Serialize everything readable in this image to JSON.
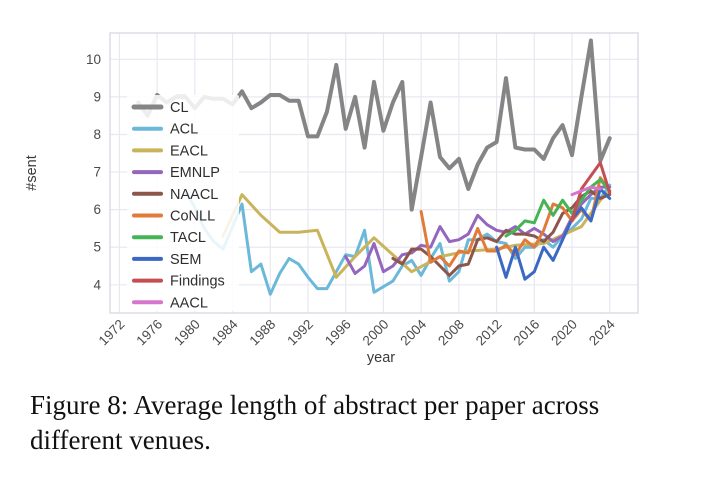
{
  "figure": {
    "caption": "Figure 8: Average length of abstract per paper across different venues."
  },
  "colors": {
    "grid": "#e8e8f0",
    "border": "#d7d7e0",
    "tick_label": "#4a4a4a",
    "axis_label": "#3a3a3a",
    "legend_text": "#2e2e2e",
    "legend_bg": "rgba(255,255,255,0.85)"
  },
  "chart_data": {
    "type": "line",
    "title": "",
    "xlabel": "year",
    "ylabel": "#sent",
    "xlim": [
      1971,
      2027
    ],
    "ylim": [
      3.25,
      10.7
    ],
    "xticks": [
      1972,
      1976,
      1980,
      1984,
      1988,
      1992,
      1996,
      2000,
      2004,
      2008,
      2012,
      2016,
      2020,
      2024
    ],
    "yticks": [
      4,
      5,
      6,
      7,
      8,
      9,
      10
    ],
    "grid": true,
    "legend_position": "upper left inside",
    "series": [
      {
        "name": "CL",
        "color": "#858585",
        "width": 4,
        "points": [
          [
            1974,
            8.85
          ],
          [
            1975,
            8.5
          ],
          [
            1976,
            9.05
          ],
          [
            1977,
            8.85
          ],
          [
            1978,
            9.0
          ],
          [
            1979,
            9.0
          ],
          [
            1980,
            8.7
          ],
          [
            1981,
            9.0
          ],
          [
            1982,
            8.95
          ],
          [
            1983,
            8.95
          ],
          [
            1984,
            8.8
          ],
          [
            1985,
            9.15
          ],
          [
            1986,
            8.7
          ],
          [
            1987,
            8.85
          ],
          [
            1988,
            9.05
          ],
          [
            1989,
            9.05
          ],
          [
            1990,
            8.9
          ],
          [
            1991,
            8.9
          ],
          [
            1992,
            7.95
          ],
          [
            1993,
            7.95
          ],
          [
            1994,
            8.6
          ],
          [
            1995,
            9.85
          ],
          [
            1996,
            8.15
          ],
          [
            1997,
            9.0
          ],
          [
            1998,
            7.65
          ],
          [
            1999,
            9.4
          ],
          [
            2000,
            8.1
          ],
          [
            2001,
            8.85
          ],
          [
            2002,
            9.4
          ],
          [
            2003,
            6.0
          ],
          [
            2004,
            7.4
          ],
          [
            2005,
            8.85
          ],
          [
            2006,
            7.4
          ],
          [
            2007,
            7.1
          ],
          [
            2008,
            7.35
          ],
          [
            2009,
            6.55
          ],
          [
            2010,
            7.2
          ],
          [
            2011,
            7.65
          ],
          [
            2012,
            7.8
          ],
          [
            2013,
            9.5
          ],
          [
            2014,
            7.65
          ],
          [
            2015,
            7.6
          ],
          [
            2016,
            7.6
          ],
          [
            2017,
            7.35
          ],
          [
            2018,
            7.9
          ],
          [
            2019,
            8.25
          ],
          [
            2020,
            7.45
          ],
          [
            2021,
            9.0
          ],
          [
            2022,
            10.5
          ],
          [
            2023,
            7.3
          ],
          [
            2024,
            7.9
          ]
        ]
      },
      {
        "name": "ACL",
        "color": "#6cb8d9",
        "width": 3,
        "points": [
          [
            1979,
            6.5
          ],
          [
            1980,
            6.05
          ],
          [
            1981,
            5.5
          ],
          [
            1982,
            5.15
          ],
          [
            1983,
            4.95
          ],
          [
            1984,
            5.55
          ],
          [
            1985,
            6.15
          ],
          [
            1986,
            4.35
          ],
          [
            1987,
            4.55
          ],
          [
            1988,
            3.75
          ],
          [
            1989,
            4.3
          ],
          [
            1990,
            4.7
          ],
          [
            1991,
            4.55
          ],
          [
            1992,
            4.2
          ],
          [
            1993,
            3.9
          ],
          [
            1994,
            3.9
          ],
          [
            1995,
            4.35
          ],
          [
            1996,
            4.8
          ],
          [
            1997,
            4.75
          ],
          [
            1998,
            5.45
          ],
          [
            1999,
            3.8
          ],
          [
            2000,
            3.95
          ],
          [
            2001,
            4.1
          ],
          [
            2002,
            4.5
          ],
          [
            2003,
            4.65
          ],
          [
            2004,
            4.25
          ],
          [
            2005,
            4.7
          ],
          [
            2006,
            5.1
          ],
          [
            2007,
            4.1
          ],
          [
            2008,
            4.35
          ],
          [
            2009,
            5.2
          ],
          [
            2010,
            5.2
          ],
          [
            2011,
            5.35
          ],
          [
            2012,
            5.15
          ],
          [
            2013,
            5.1
          ],
          [
            2014,
            4.7
          ],
          [
            2015,
            5.0
          ],
          [
            2016,
            5.0
          ],
          [
            2017,
            5.2
          ],
          [
            2018,
            5.0
          ],
          [
            2019,
            5.3
          ],
          [
            2020,
            5.5
          ],
          [
            2021,
            5.75
          ],
          [
            2022,
            6.3
          ],
          [
            2023,
            6.3
          ],
          [
            2024,
            6.65
          ]
        ]
      },
      {
        "name": "EACL",
        "color": "#c9b45c",
        "width": 3,
        "points": [
          [
            1983,
            5.3
          ],
          [
            1985,
            6.4
          ],
          [
            1987,
            5.85
          ],
          [
            1989,
            5.4
          ],
          [
            1991,
            5.4
          ],
          [
            1993,
            5.45
          ],
          [
            1995,
            4.2
          ],
          [
            1997,
            4.75
          ],
          [
            1999,
            5.25
          ],
          [
            2003,
            4.35
          ],
          [
            2006,
            4.75
          ],
          [
            2009,
            4.9
          ],
          [
            2012,
            4.95
          ],
          [
            2014,
            5.05
          ],
          [
            2017,
            5.1
          ],
          [
            2021,
            5.55
          ],
          [
            2023,
            6.25
          ],
          [
            2024,
            6.5
          ]
        ]
      },
      {
        "name": "EMNLP",
        "color": "#9467bd",
        "width": 3,
        "points": [
          [
            1996,
            4.75
          ],
          [
            1997,
            4.3
          ],
          [
            1998,
            4.5
          ],
          [
            1999,
            5.1
          ],
          [
            2000,
            4.35
          ],
          [
            2001,
            4.5
          ],
          [
            2002,
            4.8
          ],
          [
            2003,
            4.85
          ],
          [
            2004,
            5.05
          ],
          [
            2005,
            5.0
          ],
          [
            2006,
            5.55
          ],
          [
            2007,
            5.15
          ],
          [
            2008,
            5.2
          ],
          [
            2009,
            5.35
          ],
          [
            2010,
            5.85
          ],
          [
            2011,
            5.6
          ],
          [
            2012,
            5.45
          ],
          [
            2013,
            5.4
          ],
          [
            2014,
            5.55
          ],
          [
            2015,
            5.35
          ],
          [
            2016,
            5.5
          ],
          [
            2017,
            5.35
          ],
          [
            2018,
            5.15
          ],
          [
            2019,
            5.3
          ],
          [
            2020,
            5.8
          ],
          [
            2021,
            6.15
          ],
          [
            2022,
            6.4
          ],
          [
            2023,
            6.6
          ],
          [
            2024,
            6.6
          ]
        ]
      },
      {
        "name": "NAACL",
        "color": "#8c564b",
        "width": 3,
        "points": [
          [
            2001,
            4.7
          ],
          [
            2002,
            4.55
          ],
          [
            2003,
            4.95
          ],
          [
            2004,
            4.95
          ],
          [
            2005,
            4.75
          ],
          [
            2006,
            4.5
          ],
          [
            2007,
            4.25
          ],
          [
            2008,
            4.5
          ],
          [
            2009,
            4.55
          ],
          [
            2010,
            5.2
          ],
          [
            2011,
            5.25
          ],
          [
            2012,
            5.15
          ],
          [
            2013,
            5.45
          ],
          [
            2014,
            5.35
          ],
          [
            2015,
            5.35
          ],
          [
            2016,
            5.3
          ],
          [
            2017,
            5.15
          ],
          [
            2018,
            5.4
          ],
          [
            2019,
            5.9
          ],
          [
            2020,
            6.05
          ],
          [
            2021,
            6.35
          ],
          [
            2022,
            6.5
          ],
          [
            2023,
            6.3
          ],
          [
            2024,
            6.4
          ]
        ]
      },
      {
        "name": "CoNLL",
        "color": "#e07b39",
        "width": 3,
        "points": [
          [
            2004,
            5.95
          ],
          [
            2005,
            4.6
          ],
          [
            2006,
            4.75
          ],
          [
            2007,
            4.5
          ],
          [
            2008,
            4.9
          ],
          [
            2009,
            4.85
          ],
          [
            2010,
            5.5
          ],
          [
            2011,
            4.9
          ],
          [
            2012,
            4.9
          ],
          [
            2013,
            5.05
          ],
          [
            2014,
            4.8
          ],
          [
            2015,
            5.2
          ],
          [
            2016,
            5.0
          ],
          [
            2017,
            5.45
          ],
          [
            2018,
            6.15
          ],
          [
            2019,
            6.05
          ],
          [
            2020,
            5.7
          ],
          [
            2021,
            6.0
          ],
          [
            2022,
            5.7
          ],
          [
            2023,
            6.85
          ],
          [
            2024,
            6.5
          ]
        ]
      },
      {
        "name": "TACL",
        "color": "#45b454",
        "width": 3,
        "points": [
          [
            2013,
            5.3
          ],
          [
            2014,
            5.45
          ],
          [
            2015,
            5.7
          ],
          [
            2016,
            5.65
          ],
          [
            2017,
            6.25
          ],
          [
            2018,
            5.85
          ],
          [
            2019,
            6.25
          ],
          [
            2020,
            5.9
          ],
          [
            2021,
            6.25
          ],
          [
            2022,
            6.6
          ],
          [
            2023,
            6.8
          ],
          [
            2024,
            6.5
          ]
        ]
      },
      {
        "name": "SEM",
        "color": "#3a68c4",
        "width": 3,
        "points": [
          [
            2012,
            5.0
          ],
          [
            2013,
            4.2
          ],
          [
            2014,
            5.0
          ],
          [
            2015,
            4.15
          ],
          [
            2016,
            4.35
          ],
          [
            2017,
            5.0
          ],
          [
            2018,
            4.65
          ],
          [
            2019,
            5.2
          ],
          [
            2020,
            5.75
          ],
          [
            2021,
            6.05
          ],
          [
            2022,
            5.7
          ],
          [
            2023,
            6.55
          ],
          [
            2024,
            6.3
          ]
        ]
      },
      {
        "name": "Findings",
        "color": "#c44e52",
        "width": 3,
        "points": [
          [
            2020,
            5.7
          ],
          [
            2021,
            6.55
          ],
          [
            2022,
            6.9
          ],
          [
            2023,
            7.25
          ],
          [
            2024,
            6.45
          ]
        ]
      },
      {
        "name": "AACL",
        "color": "#d674ce",
        "width": 3,
        "points": [
          [
            2020,
            6.4
          ],
          [
            2022,
            6.6
          ],
          [
            2023,
            6.55
          ]
        ]
      }
    ]
  }
}
